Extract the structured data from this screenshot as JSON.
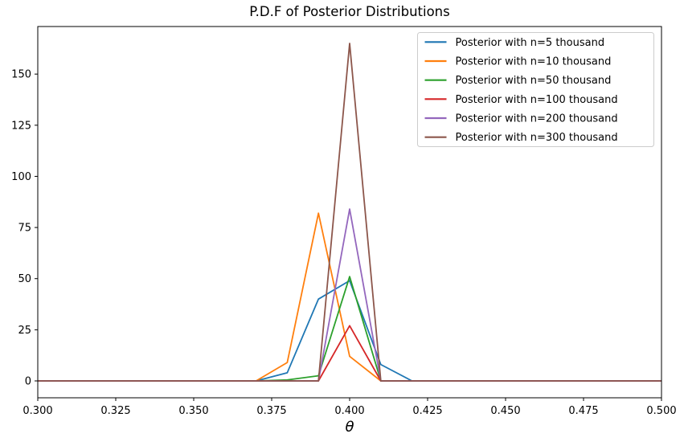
{
  "chart_data": {
    "type": "line",
    "title": "P.D.F of Posterior Distributions",
    "xlabel": "θ",
    "ylabel": "",
    "xlim": [
      0.3,
      0.5
    ],
    "ylim": [
      -8.25,
      173.25
    ],
    "xticks": [
      "0.300",
      "0.325",
      "0.350",
      "0.375",
      "0.400",
      "0.425",
      "0.450",
      "0.475",
      "0.500"
    ],
    "yticks": [
      0,
      25,
      50,
      75,
      100,
      125,
      150
    ],
    "grid": false,
    "legend_position": "upper right",
    "x": [
      0.3,
      0.31,
      0.32,
      0.33,
      0.34,
      0.35,
      0.36,
      0.37,
      0.38,
      0.39,
      0.4,
      0.41,
      0.42,
      0.43,
      0.44,
      0.45,
      0.46,
      0.47,
      0.48,
      0.49,
      0.5
    ],
    "series": [
      {
        "name": "Posterior with n=5 thousand",
        "color": "#1f77b4",
        "values": [
          0,
          0,
          0,
          0,
          0,
          0,
          0,
          0,
          4,
          40,
          49,
          8,
          0,
          0,
          0,
          0,
          0,
          0,
          0,
          0,
          0
        ]
      },
      {
        "name": "Posterior with n=10 thousand",
        "color": "#ff7f0e",
        "values": [
          0,
          0,
          0,
          0,
          0,
          0,
          0,
          0,
          9,
          82,
          12,
          0,
          0,
          0,
          0,
          0,
          0,
          0,
          0,
          0,
          0
        ]
      },
      {
        "name": "Posterior with n=50 thousand",
        "color": "#2ca02c",
        "values": [
          0,
          0,
          0,
          0,
          0,
          0,
          0,
          0,
          0.5,
          2.5,
          51,
          0,
          0,
          0,
          0,
          0,
          0,
          0,
          0,
          0,
          0
        ]
      },
      {
        "name": "Posterior with n=100 thousand",
        "color": "#d62728",
        "values": [
          0,
          0,
          0,
          0,
          0,
          0,
          0,
          0,
          0,
          0,
          27,
          0,
          0,
          0,
          0,
          0,
          0,
          0,
          0,
          0,
          0
        ]
      },
      {
        "name": "Posterior with n=200 thousand",
        "color": "#9467bd",
        "values": [
          0,
          0,
          0,
          0,
          0,
          0,
          0,
          0,
          0,
          0,
          84,
          0,
          0,
          0,
          0,
          0,
          0,
          0,
          0,
          0,
          0
        ]
      },
      {
        "name": "Posterior with n=300 thousand",
        "color": "#8c564b",
        "values": [
          0,
          0,
          0,
          0,
          0,
          0,
          0,
          0,
          0,
          0,
          165,
          0,
          0,
          0,
          0,
          0,
          0,
          0,
          0,
          0,
          0
        ]
      }
    ],
    "style": {
      "spine_color": "#000000",
      "tick_color": "#000000",
      "legend_border_color": "#cccccc",
      "legend_background": "#ffffff",
      "plot_background": "#ffffff"
    }
  }
}
